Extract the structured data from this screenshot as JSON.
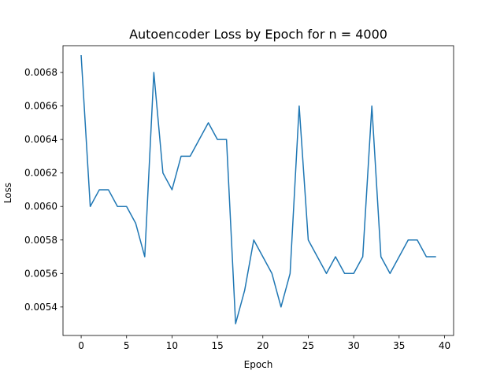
{
  "chart_data": {
    "type": "line",
    "title": "Autoencoder Loss by Epoch for n = 4000",
    "xlabel": "Epoch",
    "ylabel": "Loss",
    "xlim": [
      -2,
      41
    ],
    "ylim": [
      0.00523,
      0.00696
    ],
    "x_ticks": [
      0,
      5,
      10,
      15,
      20,
      25,
      30,
      35,
      40
    ],
    "y_ticks": [
      0.0054,
      0.0056,
      0.0058,
      0.006,
      0.0062,
      0.0064,
      0.0066,
      0.0068
    ],
    "x_tick_labels": [
      "0",
      "5",
      "10",
      "15",
      "20",
      "25",
      "30",
      "35",
      "40"
    ],
    "y_tick_labels": [
      "0.0054",
      "0.0056",
      "0.0058",
      "0.0060",
      "0.0062",
      "0.0064",
      "0.0066",
      "0.0068"
    ],
    "grid": false,
    "legend": "none",
    "series": [
      {
        "color": "#1f77b4",
        "x": [
          0,
          1,
          2,
          3,
          4,
          5,
          6,
          7,
          8,
          9,
          10,
          11,
          12,
          13,
          14,
          15,
          16,
          17,
          18,
          19,
          20,
          21,
          22,
          23,
          24,
          25,
          26,
          27,
          28,
          29,
          30,
          31,
          32,
          33,
          34,
          35,
          36,
          37,
          38,
          39
        ],
        "values": [
          0.0069,
          0.006,
          0.0061,
          0.0061,
          0.006,
          0.006,
          0.0059,
          0.0057,
          0.0068,
          0.0062,
          0.0061,
          0.0063,
          0.0063,
          0.0064,
          0.0065,
          0.0064,
          0.0064,
          0.0053,
          0.0055,
          0.0058,
          0.0057,
          0.0056,
          0.0054,
          0.0056,
          0.0066,
          0.0058,
          0.0057,
          0.0056,
          0.0057,
          0.0056,
          0.0056,
          0.0057,
          0.0066,
          0.0057,
          0.0056,
          0.0057,
          0.0058,
          0.0058,
          0.0057,
          0.0057
        ]
      }
    ]
  }
}
